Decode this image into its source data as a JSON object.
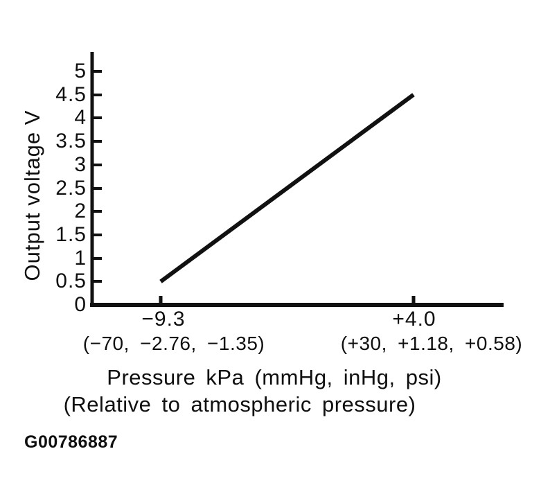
{
  "figure_code": "G00786887",
  "chart_data": {
    "type": "line",
    "title": "",
    "ylabel": "Output voltage V",
    "xlabel_line1": "Pressure kPa (mmHg, inHg, psi)",
    "xlabel_line2": "(Relative to atmospheric pressure)",
    "ylim": [
      0,
      5.25
    ],
    "xlim": [
      -12.9,
      8.7
    ],
    "grid": false,
    "legend": "none",
    "axis_color": "#111111",
    "line_color": "#111111",
    "background_color": "#ffffff",
    "y_ticks": [
      {
        "value": 5,
        "label": "5"
      },
      {
        "value": 4.5,
        "label": "4.5"
      },
      {
        "value": 4,
        "label": "4"
      },
      {
        "value": 3.5,
        "label": "3.5"
      },
      {
        "value": 3,
        "label": "3"
      },
      {
        "value": 2.5,
        "label": "2.5"
      },
      {
        "value": 2,
        "label": "2"
      },
      {
        "value": 1.5,
        "label": "1.5"
      },
      {
        "value": 1,
        "label": "1"
      },
      {
        "value": 0.5,
        "label": "0.5"
      },
      {
        "value": 0,
        "label": "0"
      }
    ],
    "x_ticks": [
      {
        "value": -9.3,
        "label": "−9.3",
        "sub_label": "(−70, −2.76, −1.35)"
      },
      {
        "value": 4.0,
        "label": "+4.0",
        "sub_label": "(+30, +1.18, +0.58)"
      }
    ],
    "series": [
      {
        "points": [
          {
            "x": -9.3,
            "y": 0.5
          },
          {
            "x": 4.0,
            "y": 4.5
          }
        ]
      }
    ]
  }
}
